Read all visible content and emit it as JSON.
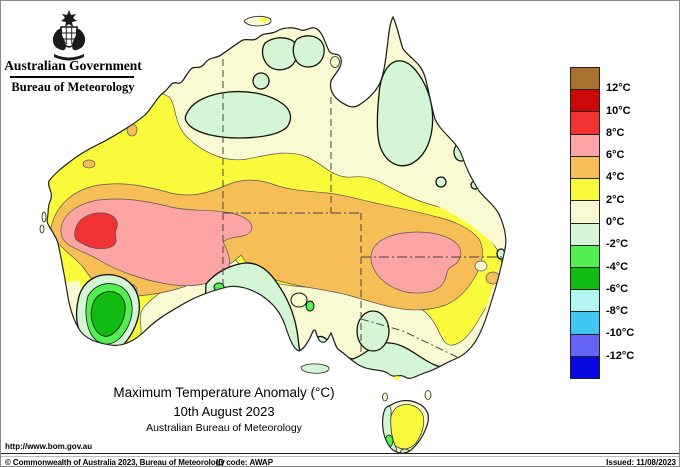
{
  "header": {
    "government_label": "Australian Government",
    "bureau_label": "Bureau of Meteorology"
  },
  "titles": {
    "main": "Maximum Temperature Anomaly (°C)",
    "date": "10th August 2023",
    "org": "Australian Bureau of Meteorology"
  },
  "footer": {
    "url": "http://www.bom.gov.au",
    "copyright": "© Commonwealth of Australia 2023, Bureau of Meteorology",
    "id_code": "ID code: AWAP",
    "issued": "Issued: 11/08/2023"
  },
  "legend": {
    "tick_labels": [
      "12°C",
      "10°C",
      "8°C",
      "6°C",
      "4°C",
      "2°C",
      "0°C",
      "-2°C",
      "-4°C",
      "-6°C",
      "-8°C",
      "-10°C",
      "-12°C"
    ],
    "band_colors": [
      "#a9712f",
      "#cc0808",
      "#f03232",
      "#fca4a4",
      "#f7be57",
      "#fafa3c",
      "#fafad2",
      "#d4f6d4",
      "#52ee52",
      "#11bb11",
      "#b4f6f2",
      "#42c8f0",
      "#6464f6",
      "#0808e0"
    ]
  },
  "chart_data": {
    "type": "map",
    "region": "Australia",
    "variable": "Maximum temperature anomaly (°C)",
    "date": "10th August 2023",
    "scale_ticks_c": [
      12,
      10,
      8,
      6,
      4,
      2,
      0,
      -2,
      -4,
      -6,
      -8,
      -10,
      -12
    ],
    "features": [
      {
        "area": "central-west Western Australia interior",
        "anomaly_c": "+8 to +10 core inside a +6 to +8 region"
      },
      {
        "area": "broad band across central Australia from WA coast to NSW",
        "anomaly_c": "+4 to +6"
      },
      {
        "area": "inland northern NSW / SA-QLD border district",
        "anomaly_c": "+6 to +8"
      },
      {
        "area": "southwest WA (lower west corner)",
        "anomaly_c": "-4 to -6 core inside -2 to -4 ring"
      },
      {
        "area": "Cape York Peninsula interior, Top End and central NT",
        "anomaly_c": "0 to -2"
      },
      {
        "area": "southern coast SA, Eyre Peninsula, Victoria, western Tasmania",
        "anomaly_c": "0 to -2"
      },
      {
        "area": "central-eastern Tasmania",
        "anomaly_c": "+2 to +4"
      },
      {
        "area": "most remaining coastal fringes",
        "anomaly_c": "0 to +2"
      }
    ]
  }
}
